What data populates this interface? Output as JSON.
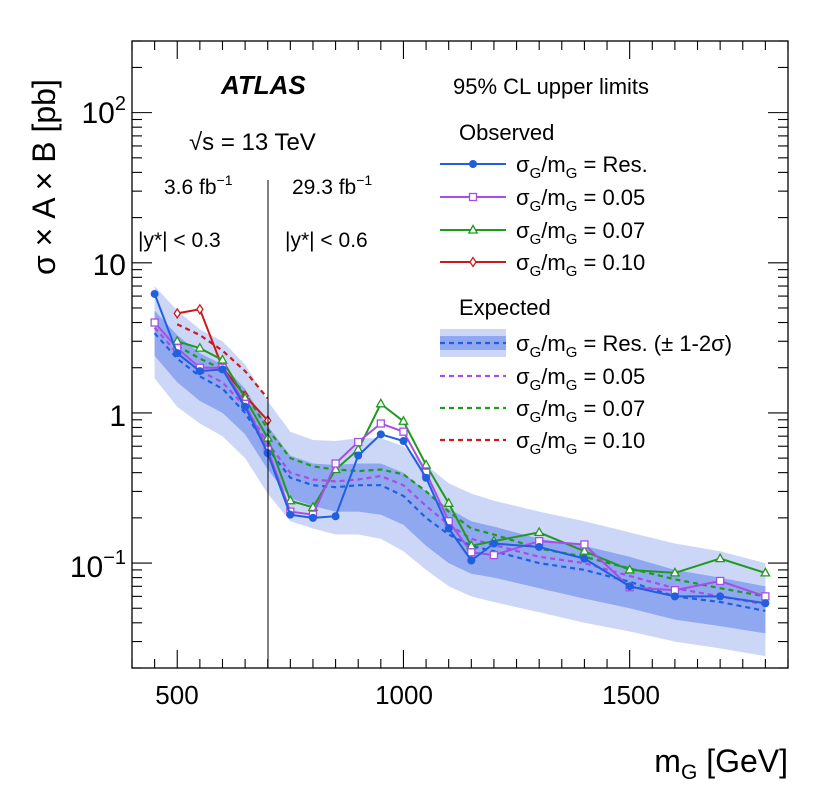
{
  "chart_data": {
    "type": "line",
    "xlabel": "m",
    "xlabel_sub": "G",
    "xlabel_unit": " [GeV]",
    "ylabel": "σ × A × B [pb]",
    "x_range": [
      400,
      1850
    ],
    "y_range": [
      0.02,
      300
    ],
    "y_scale": "log",
    "x_ticks": [
      500,
      1000,
      1500
    ],
    "y_tick_labels": {
      "hundred": {
        "base": "10",
        "exp": "2"
      },
      "ten": "10",
      "one": "1",
      "tenth": {
        "base": "10",
        "exp": "−1"
      }
    },
    "experiment": "ATLAS",
    "energy": {
      "sqrt_symbol": "√",
      "text": "s = 13 TeV"
    },
    "region_divider_x": 700,
    "regions": {
      "left": {
        "lumi": "3.6 fb",
        "lumi_exp": "−1",
        "cut": "|y*| < 0.3"
      },
      "right": {
        "lumi": "29.3 fb",
        "lumi_exp": "−1",
        "cut": "|y*| < 0.6"
      }
    },
    "legend": {
      "header": "95% CL upper limits",
      "observed_title": "Observed",
      "expected_title": "Expected",
      "prefix": "σ",
      "prefix_sub": "G",
      "slash": "/m",
      "slash_sub": "G",
      "band_suffix": " (± 1-2σ)"
    },
    "series_colors": {
      "res": "#1f5fe0",
      "w005": "#a64ee6",
      "w007": "#1f9a1f",
      "w010": "#cc1a1a"
    },
    "band_colors": {
      "one_sigma": "#90a8ef",
      "two_sigma": "#ccd7f8"
    },
    "observed": [
      {
        "key": "res",
        "label": "Res.",
        "marker": "circle",
        "x": [
          450,
          500,
          550,
          600,
          650,
          700,
          750,
          800,
          850,
          900,
          950,
          1000,
          1050,
          1100,
          1150,
          1200,
          1300,
          1400,
          1500,
          1600,
          1700,
          1800
        ],
        "y": [
          6.2,
          2.5,
          1.9,
          1.95,
          1.1,
          0.54,
          0.21,
          0.2,
          0.205,
          0.52,
          0.72,
          0.65,
          0.37,
          0.17,
          0.104,
          0.135,
          0.128,
          0.107,
          0.07,
          0.06,
          0.06,
          0.054
        ]
      },
      {
        "key": "w005",
        "label": "0.05",
        "marker": "square",
        "x": [
          450,
          500,
          550,
          600,
          650,
          700,
          750,
          800,
          850,
          900,
          950,
          1000,
          1050,
          1100,
          1150,
          1200,
          1300,
          1400,
          1500,
          1600,
          1700,
          1800
        ],
        "y": [
          4.0,
          2.7,
          2.0,
          2.0,
          1.15,
          0.57,
          0.22,
          0.21,
          0.46,
          0.64,
          0.85,
          0.75,
          0.4,
          0.19,
          0.118,
          0.113,
          0.14,
          0.133,
          0.069,
          0.066,
          0.076,
          0.06
        ]
      },
      {
        "key": "w007",
        "label": "0.07",
        "marker": "triangle",
        "x": [
          500,
          550,
          600,
          650,
          700,
          750,
          800,
          850,
          900,
          950,
          1000,
          1050,
          1100,
          1150,
          1200,
          1300,
          1400,
          1500,
          1600,
          1700,
          1800
        ],
        "y": [
          3.0,
          2.7,
          2.25,
          1.25,
          0.68,
          0.26,
          0.235,
          0.42,
          0.57,
          1.15,
          0.88,
          0.45,
          0.25,
          0.13,
          0.14,
          0.16,
          0.12,
          0.09,
          0.086,
          0.107,
          0.086
        ]
      },
      {
        "key": "w010",
        "label": "0.10",
        "marker": "diamond",
        "x": [
          500,
          550,
          600,
          650,
          700
        ],
        "y": [
          4.6,
          4.9,
          2.0,
          1.3,
          0.89
        ]
      }
    ],
    "expected_band": {
      "x": [
        450,
        500,
        550,
        600,
        650,
        700,
        750,
        800,
        850,
        900,
        950,
        1000,
        1050,
        1100,
        1150,
        1200,
        1300,
        1400,
        1500,
        1600,
        1700,
        1800
      ],
      "median": [
        3.4,
        2.3,
        1.75,
        1.45,
        1.0,
        0.58,
        0.37,
        0.33,
        0.32,
        0.33,
        0.33,
        0.28,
        0.2,
        0.155,
        0.13,
        0.12,
        0.1,
        0.09,
        0.075,
        0.06,
        0.055,
        0.048
      ],
      "minus1": [
        2.4,
        1.6,
        1.2,
        1.0,
        0.72,
        0.42,
        0.27,
        0.24,
        0.22,
        0.22,
        0.21,
        0.18,
        0.13,
        0.1,
        0.085,
        0.08,
        0.068,
        0.058,
        0.05,
        0.042,
        0.038,
        0.034
      ],
      "plus1": [
        4.8,
        3.3,
        2.5,
        2.1,
        1.45,
        0.82,
        0.52,
        0.46,
        0.45,
        0.46,
        0.46,
        0.4,
        0.3,
        0.23,
        0.19,
        0.175,
        0.145,
        0.13,
        0.11,
        0.09,
        0.08,
        0.07
      ],
      "minus2": [
        1.7,
        1.1,
        0.85,
        0.7,
        0.5,
        0.29,
        0.19,
        0.17,
        0.155,
        0.155,
        0.145,
        0.12,
        0.09,
        0.07,
        0.06,
        0.055,
        0.047,
        0.04,
        0.035,
        0.03,
        0.027,
        0.024
      ],
      "plus2": [
        7.0,
        4.8,
        3.6,
        3.0,
        2.1,
        1.2,
        0.75,
        0.66,
        0.65,
        0.68,
        0.68,
        0.6,
        0.45,
        0.34,
        0.29,
        0.26,
        0.22,
        0.19,
        0.16,
        0.135,
        0.12,
        0.1
      ]
    },
    "expected": [
      {
        "key": "w005",
        "label": "0.05",
        "x": [
          450,
          500,
          550,
          600,
          650,
          700,
          750,
          800,
          850,
          900,
          950,
          1000,
          1050,
          1100,
          1150,
          1200,
          1300,
          1400,
          1500,
          1600,
          1700,
          1800
        ],
        "y": [
          3.7,
          2.5,
          1.9,
          1.6,
          1.1,
          0.63,
          0.4,
          0.36,
          0.35,
          0.36,
          0.38,
          0.33,
          0.24,
          0.18,
          0.145,
          0.132,
          0.11,
          0.1,
          0.082,
          0.068,
          0.06,
          0.053
        ]
      },
      {
        "key": "w007",
        "label": "0.07",
        "x": [
          500,
          550,
          600,
          650,
          700,
          750,
          800,
          850,
          900,
          950,
          1000,
          1050,
          1100,
          1150,
          1200,
          1300,
          1400,
          1500,
          1600,
          1700,
          1800
        ],
        "y": [
          2.8,
          2.3,
          1.95,
          1.35,
          0.78,
          0.5,
          0.44,
          0.42,
          0.41,
          0.42,
          0.39,
          0.3,
          0.22,
          0.17,
          0.155,
          0.125,
          0.11,
          0.092,
          0.078,
          0.068,
          0.06
        ]
      },
      {
        "key": "w010",
        "label": "0.10",
        "x": [
          500,
          550,
          600,
          650,
          700
        ],
        "y": [
          3.9,
          3.3,
          2.6,
          1.9,
          1.25
        ]
      }
    ]
  }
}
